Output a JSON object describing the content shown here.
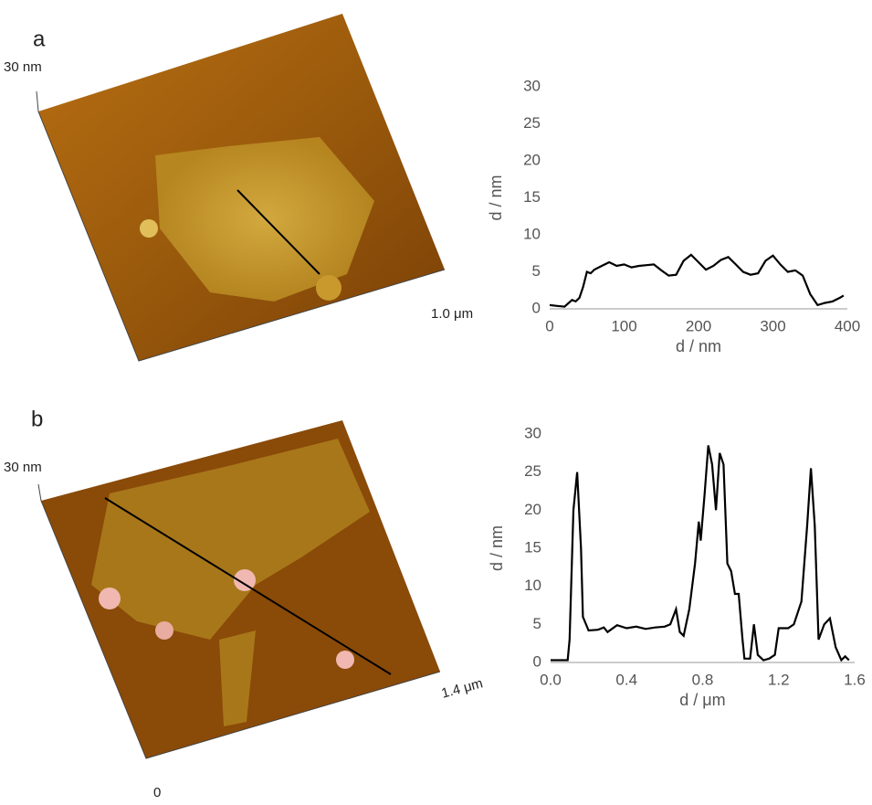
{
  "panels": [
    {
      "label": "a",
      "z_scale": "30 nm",
      "x_scale": "1.0 μm"
    },
    {
      "label": "b",
      "z_scale": "30 nm",
      "x_scale": "1.4 μm",
      "origin": "0"
    }
  ],
  "chart_data": [
    {
      "type": "line",
      "xlabel": "d / nm",
      "ylabel": "d / nm",
      "color": "#000000",
      "x": [
        0,
        10,
        20,
        30,
        35,
        40,
        45,
        50,
        55,
        60,
        70,
        80,
        90,
        100,
        110,
        120,
        130,
        140,
        150,
        160,
        170,
        180,
        190,
        200,
        210,
        220,
        230,
        240,
        250,
        260,
        270,
        280,
        290,
        300,
        310,
        320,
        330,
        340,
        350,
        360,
        370,
        380,
        390,
        395
      ],
      "values": [
        0.5,
        0.4,
        0.3,
        1.2,
        1.0,
        1.5,
        3,
        5,
        4.8,
        5.3,
        5.8,
        6.3,
        5.8,
        6.0,
        5.6,
        5.8,
        5.9,
        6.0,
        5.2,
        4.5,
        4.6,
        6.5,
        7.3,
        6.3,
        5.3,
        5.8,
        6.6,
        7.0,
        6.0,
        5.0,
        4.6,
        4.8,
        6.5,
        7.2,
        6.0,
        5.0,
        5.2,
        4.5,
        2.0,
        0.5,
        0.8,
        1.0,
        1.5,
        1.8
      ],
      "xlim": [
        0,
        400
      ],
      "xticks": [
        0,
        100,
        200,
        300,
        400
      ],
      "ylim": [
        0,
        30
      ],
      "yticks": [
        0,
        5,
        10,
        15,
        20,
        25,
        30
      ]
    },
    {
      "type": "line",
      "xlabel": "d / μm",
      "ylabel": "d / nm",
      "color": "#000000",
      "x": [
        0,
        0.05,
        0.09,
        0.1,
        0.12,
        0.14,
        0.16,
        0.17,
        0.2,
        0.25,
        0.28,
        0.3,
        0.35,
        0.4,
        0.45,
        0.5,
        0.55,
        0.6,
        0.63,
        0.66,
        0.68,
        0.7,
        0.73,
        0.76,
        0.78,
        0.79,
        0.81,
        0.83,
        0.85,
        0.87,
        0.89,
        0.91,
        0.93,
        0.95,
        0.97,
        0.99,
        1.01,
        1.02,
        1.05,
        1.07,
        1.09,
        1.12,
        1.15,
        1.18,
        1.2,
        1.25,
        1.28,
        1.32,
        1.35,
        1.37,
        1.39,
        1.41,
        1.44,
        1.47,
        1.5,
        1.53,
        1.55,
        1.57
      ],
      "values": [
        0.3,
        0.3,
        0.3,
        3,
        20,
        25,
        15,
        6,
        4.2,
        4.3,
        4.6,
        4.0,
        4.9,
        4.5,
        4.7,
        4.4,
        4.6,
        4.7,
        5,
        7,
        4,
        3.5,
        7,
        13,
        18.5,
        16,
        22,
        28.5,
        26,
        20,
        27.5,
        26,
        13,
        12,
        9,
        9,
        3,
        0.5,
        0.5,
        5,
        1,
        0.3,
        0.5,
        1,
        4.5,
        4.5,
        5,
        8,
        18,
        25.5,
        18,
        3,
        5,
        5.8,
        2,
        0.3,
        0.8,
        0.3
      ],
      "xlim": [
        0,
        1.6
      ],
      "xticks": [
        {
          "value": 0,
          "label": "0.0"
        },
        0.4,
        0.8,
        1.2,
        1.6
      ],
      "ylim": [
        0,
        30
      ],
      "yticks": [
        0,
        5,
        10,
        15,
        20,
        25,
        30
      ]
    }
  ]
}
